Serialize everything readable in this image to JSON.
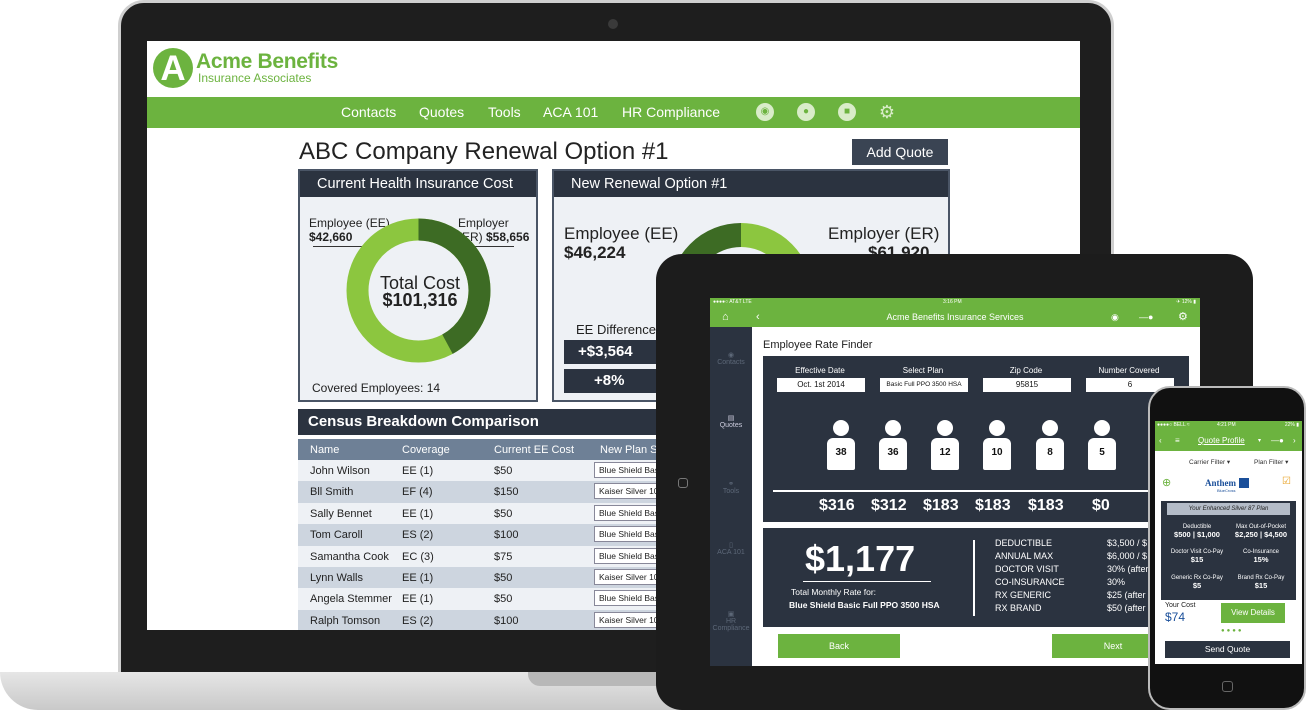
{
  "laptop": {
    "brand": {
      "logo_letter": "A",
      "name": "Acme Benefits",
      "tagline": "Insurance Associates"
    },
    "nav": [
      "Contacts",
      "Quotes",
      "Tools",
      "ACA 101",
      "HR Compliance"
    ],
    "nav_icons": [
      "camera-icon",
      "chat-icon",
      "video-icon",
      "gear-icon"
    ],
    "title": "ABC Company Renewal Option #1",
    "add_quote": "Add Quote",
    "current": {
      "header": "Current Health Insurance Cost",
      "ee_label": "Employee (EE)",
      "ee_value": "$42,660",
      "er_label": "Employer (ER)",
      "er_value": "$58,656",
      "total_label": "Total Cost",
      "total_value": "$101,316",
      "covered": "Covered Employees: 14",
      "ee_share": 0.421
    },
    "renewal": {
      "header": "New Renewal Option #1",
      "ee_label": "Employee (EE)",
      "ee_value": "$46,224",
      "er_label": "Employer (ER)",
      "er_value": "$61,920",
      "diff_label": "EE Difference",
      "diff_value": "+$3,564",
      "diff_pct": "+8%"
    },
    "census": {
      "header": "Census Breakdown Comparison",
      "columns": [
        "Name",
        "Coverage",
        "Current EE Cost",
        "New Plan Se"
      ],
      "rows": [
        {
          "name": "John Wilson",
          "coverage": "EE (1)",
          "cost": "$50",
          "plan": "Blue Shield Bas"
        },
        {
          "name": "Bll Smith",
          "coverage": "EF (4)",
          "cost": "$150",
          "plan": "Kaiser Silver 10"
        },
        {
          "name": "Sally Bennet",
          "coverage": "EE (1)",
          "cost": "$50",
          "plan": "Blue Shield Bas"
        },
        {
          "name": "Tom Caroll",
          "coverage": "ES (2)",
          "cost": "$100",
          "plan": "Blue Shield Bas"
        },
        {
          "name": "Samantha Cook",
          "coverage": "EC (3)",
          "cost": "$75",
          "plan": "Blue Shield Bas"
        },
        {
          "name": "Lynn Walls",
          "coverage": "EE (1)",
          "cost": "$50",
          "plan": "Kaiser Silver 10"
        },
        {
          "name": "Angela Stemmer",
          "coverage": "EE (1)",
          "cost": "$50",
          "plan": "Blue Shield Bas"
        },
        {
          "name": "Ralph Tomson",
          "coverage": "ES (2)",
          "cost": "$100",
          "plan": "Kaiser Silver 10"
        }
      ]
    }
  },
  "tablet": {
    "status_left": "●●●●○ AT&T  LTE",
    "status_time": "3:16 PM",
    "status_right": "✈ 12% ▮",
    "app_title": "Acme Benefits Insurance Services",
    "sidebar": [
      "Contacts",
      "Quotes",
      "Tools",
      "ACA 101",
      "HR Compliance"
    ],
    "page_title": "Employee Rate Finder",
    "fields": [
      {
        "label": "Effective Date",
        "value": "Oct. 1st 2014"
      },
      {
        "label": "Select Plan",
        "value": "Basic Full PPO 3500 HSA"
      },
      {
        "label": "Zip Code",
        "value": "95815"
      },
      {
        "label": "Number Covered",
        "value": "6"
      }
    ],
    "ages": [
      "38",
      "36",
      "12",
      "10",
      "8",
      "5"
    ],
    "rates": [
      "$316",
      "$312",
      "$183",
      "$183",
      "$183",
      "$0"
    ],
    "total": "$1,177",
    "total_label": "Total Monthly Rate for:",
    "plan_name": "Blue Shield Basic Full PPO 3500 HSA",
    "details": [
      {
        "k": "DEDUCTIBLE",
        "v": "$3,500 / $"
      },
      {
        "k": "ANNUAL MAX",
        "v": "$6,000 / $"
      },
      {
        "k": "DOCTOR VISIT",
        "v": "30% (after"
      },
      {
        "k": "CO-INSURANCE",
        "v": "30%"
      },
      {
        "k": "RX GENERIC",
        "v": "$25 (after"
      },
      {
        "k": "RX BRAND",
        "v": "$50 (after"
      }
    ],
    "back": "Back",
    "next": "Next"
  },
  "phone": {
    "status_left": "●●●●○ BELL ≈",
    "status_time": "4:21 PM",
    "status_right": "22% ▮",
    "title": "Quote Profile",
    "carrier_filter": "Carrier Filter",
    "plan_filter": "Plan Filter",
    "carrier_name": "Anthem",
    "carrier_sub": "BlueCross",
    "plan": "Your Enhanced Silver 87 Plan",
    "cells": [
      {
        "k": "Deductible",
        "v": "$500 | $1,000"
      },
      {
        "k": "Max Out-of-Pocket",
        "v": "$2,250 | $4,500"
      },
      {
        "k": "Doctor Visit Co-Pay",
        "v": "$15"
      },
      {
        "k": "Co-Insurance",
        "v": "15%"
      },
      {
        "k": "Generic Rx Co-Pay",
        "v": "$5"
      },
      {
        "k": "Brand Rx Co-Pay",
        "v": "$15"
      }
    ],
    "your_cost_label": "Your Cost",
    "your_cost": "$74",
    "view_details": "View Details",
    "send_quote": "Send Quote"
  },
  "colors": {
    "green": "#6cb33f",
    "dark": "#2b3340",
    "donut_dark": "#3d6b24",
    "donut_light": "#8cc63f"
  }
}
